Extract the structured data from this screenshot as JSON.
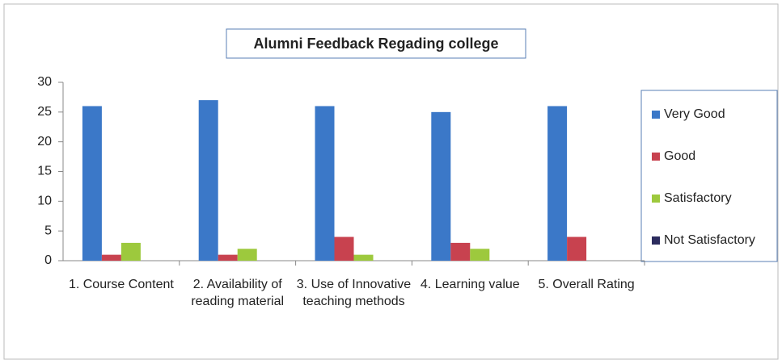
{
  "chart_data": {
    "type": "bar",
    "title": "Alumni Feedback Regading college",
    "categories": [
      "1. Course Content",
      "2. Availability of reading material",
      "3. Use of Innovative teaching methods",
      "4. Learning value",
      "5. Overall Rating"
    ],
    "series": [
      {
        "name": "Very Good",
        "color": "#3b78c8",
        "values": [
          26,
          27,
          26,
          25,
          26
        ]
      },
      {
        "name": "Good",
        "color": "#c8424f",
        "values": [
          1,
          1,
          4,
          3,
          4
        ]
      },
      {
        "name": "Satisfactory",
        "color": "#9dc93d",
        "values": [
          3,
          2,
          1,
          2,
          0
        ]
      },
      {
        "name": "Not Satisfactory",
        "color": "#2c2c5e",
        "values": [
          0,
          0,
          0,
          0,
          0
        ]
      }
    ],
    "ylim": [
      0,
      30
    ],
    "yticks": [
      0,
      5,
      10,
      15,
      20,
      25,
      30
    ],
    "legend": "right"
  }
}
